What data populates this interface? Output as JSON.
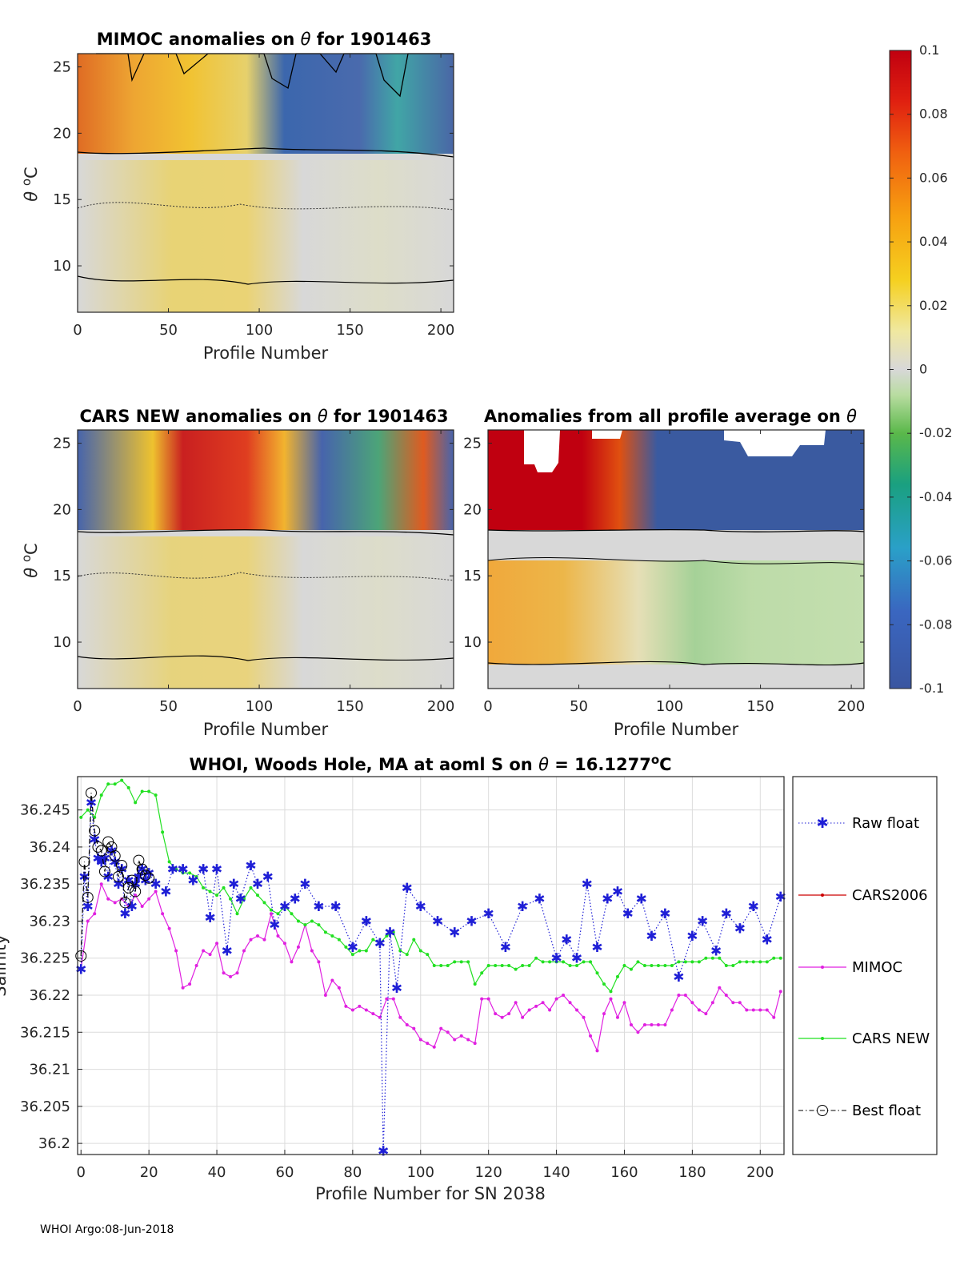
{
  "footer": "WHOI Argo:08-Jun-2018",
  "colorbar": {
    "ticks": [
      "0.1",
      "0.08",
      "0.06",
      "0.04",
      "0.02",
      "0",
      "-0.02",
      "-0.04",
      "-0.06",
      "-0.08",
      "-0.1"
    ],
    "min": -0.1,
    "max": 0.1
  },
  "colors": {
    "raw": "#1f1fd6",
    "cars2006": "#cc0000",
    "mimoc": "#e020e0",
    "carsnew": "#22e022",
    "best": "#000000"
  },
  "chart_data": [
    {
      "type": "heatmap",
      "title_a": "MIMOC anomalies on ",
      "title_sym": "θ",
      "title_b": "  for 1901463",
      "xlabel": "Profile Number",
      "ylabel_sym": "θ",
      "ylabel_unit": "C",
      "xticks": [
        "0",
        "50",
        "100",
        "150",
        "200"
      ],
      "yticks": [
        "10",
        "15",
        "20",
        "25"
      ],
      "xlim": [
        0,
        207
      ],
      "ylim": [
        6.5,
        26
      ]
    },
    {
      "type": "heatmap",
      "title_a": "CARS NEW anomalies on ",
      "title_sym": "θ",
      "title_b": " for 1901463",
      "xlabel": "Profile Number",
      "ylabel_sym": "θ",
      "ylabel_unit": "C",
      "xticks": [
        "0",
        "50",
        "100",
        "150",
        "200"
      ],
      "yticks": [
        "10",
        "15",
        "20",
        "25"
      ],
      "xlim": [
        0,
        207
      ],
      "ylim": [
        6.5,
        26
      ]
    },
    {
      "type": "heatmap",
      "title_a": "Anomalies from all profile average on ",
      "title_sym": "θ",
      "title_b": "",
      "xlabel": "Profile Number",
      "xticks": [
        "0",
        "50",
        "100",
        "150",
        "200"
      ],
      "yticks": [
        "10",
        "15",
        "20",
        "25"
      ],
      "xlim": [
        0,
        207
      ],
      "ylim": [
        6.5,
        26
      ]
    },
    {
      "type": "line",
      "title_a": "WHOI, Woods Hole, MA at aoml S on ",
      "title_sym": "θ",
      "title_b": " = 16.1277",
      "title_sup": "o",
      "title_c": "C",
      "xlabel": "Profile Number for SN 2038",
      "ylabel": "Salinity",
      "xlim": [
        -1,
        207
      ],
      "ylim": [
        36.1985,
        36.2495
      ],
      "xticks": [
        "0",
        "20",
        "40",
        "60",
        "80",
        "100",
        "120",
        "140",
        "160",
        "180",
        "200"
      ],
      "yticks": [
        "36.2",
        "36.205",
        "36.21",
        "36.215",
        "36.22",
        "36.225",
        "36.23",
        "36.235",
        "36.24",
        "36.245"
      ],
      "legend": [
        "Raw float",
        "CARS2006",
        "MIMOC",
        "CARS NEW",
        "Best float"
      ],
      "series": [
        {
          "name": "Raw float",
          "x": [
            0,
            1,
            2,
            3,
            4,
            5,
            6,
            7,
            8,
            9,
            10,
            11,
            12,
            13,
            14,
            15,
            16,
            17,
            18,
            19,
            20,
            22,
            25,
            27,
            30,
            33,
            36,
            38,
            40,
            43,
            45,
            47,
            50,
            52,
            55,
            57,
            60,
            63,
            66,
            70,
            75,
            80,
            84,
            88,
            89,
            91,
            93,
            96,
            100,
            105,
            110,
            115,
            120,
            125,
            130,
            135,
            140,
            143,
            146,
            149,
            152,
            155,
            158,
            161,
            165,
            168,
            172,
            176,
            180,
            183,
            187,
            190,
            194,
            198,
            202,
            206
          ],
          "values": [
            36.2235,
            36.236,
            36.232,
            36.246,
            36.241,
            36.2385,
            36.238,
            36.2385,
            36.236,
            36.2395,
            36.238,
            36.235,
            36.237,
            36.231,
            36.2355,
            36.232,
            36.235,
            36.236,
            36.237,
            36.2355,
            36.2365,
            36.235,
            36.234,
            36.237,
            36.237,
            36.2355,
            36.237,
            36.2305,
            36.237,
            36.226,
            36.235,
            36.233,
            36.2375,
            36.235,
            36.236,
            36.2295,
            36.232,
            36.233,
            36.235,
            36.232,
            36.232,
            36.2265,
            36.23,
            36.227,
            36.199,
            36.2285,
            36.221,
            36.2345,
            36.232,
            36.23,
            36.2285,
            36.23,
            36.231,
            36.2265,
            36.232,
            36.233,
            36.225,
            36.2275,
            36.225,
            36.235,
            36.2265,
            36.233,
            36.234,
            36.231,
            36.233,
            36.228,
            36.231,
            36.2225,
            36.228,
            36.23,
            36.226,
            36.231,
            36.229,
            36.232,
            36.2275,
            36.2333
          ]
        },
        {
          "name": "MIMOC",
          "x": [
            0,
            2,
            4,
            6,
            8,
            10,
            12,
            14,
            16,
            18,
            20,
            22,
            24,
            26,
            28,
            30,
            32,
            34,
            36,
            38,
            40,
            42,
            44,
            46,
            48,
            50,
            52,
            54,
            56,
            58,
            60,
            62,
            64,
            66,
            68,
            70,
            72,
            74,
            76,
            78,
            80,
            82,
            84,
            86,
            88,
            90,
            92,
            94,
            96,
            98,
            100,
            102,
            104,
            106,
            108,
            110,
            112,
            114,
            116,
            118,
            120,
            122,
            124,
            126,
            128,
            130,
            132,
            134,
            136,
            138,
            140,
            142,
            144,
            146,
            148,
            150,
            152,
            154,
            156,
            158,
            160,
            162,
            164,
            166,
            168,
            170,
            172,
            174,
            176,
            178,
            180,
            182,
            184,
            186,
            188,
            190,
            192,
            194,
            196,
            198,
            200,
            202,
            204,
            206
          ],
          "values": [
            36.2235,
            36.23,
            36.231,
            36.235,
            36.233,
            36.2325,
            36.233,
            36.232,
            36.2335,
            36.232,
            36.233,
            36.234,
            36.231,
            36.229,
            36.226,
            36.221,
            36.2215,
            36.224,
            36.226,
            36.2255,
            36.227,
            36.223,
            36.2225,
            36.223,
            36.226,
            36.2275,
            36.228,
            36.2275,
            36.231,
            36.228,
            36.227,
            36.2245,
            36.2265,
            36.2295,
            36.226,
            36.2245,
            36.22,
            36.222,
            36.221,
            36.2185,
            36.218,
            36.2185,
            36.218,
            36.2175,
            36.217,
            36.2195,
            36.2195,
            36.217,
            36.216,
            36.2155,
            36.214,
            36.2135,
            36.213,
            36.2155,
            36.215,
            36.214,
            36.2145,
            36.214,
            36.2135,
            36.2195,
            36.2195,
            36.2175,
            36.217,
            36.2175,
            36.219,
            36.217,
            36.218,
            36.2185,
            36.219,
            36.218,
            36.2195,
            36.22,
            36.219,
            36.218,
            36.217,
            36.2145,
            36.2125,
            36.2175,
            36.2195,
            36.217,
            36.219,
            36.216,
            36.215,
            36.216,
            36.216,
            36.216,
            36.216,
            36.218,
            36.22,
            36.22,
            36.219,
            36.218,
            36.2175,
            36.219,
            36.221,
            36.22,
            36.219,
            36.219,
            36.218,
            36.218,
            36.218,
            36.218,
            36.217,
            36.2205
          ]
        },
        {
          "name": "CARS NEW",
          "x": [
            0,
            2,
            4,
            6,
            8,
            10,
            12,
            14,
            16,
            18,
            20,
            22,
            24,
            26,
            28,
            30,
            32,
            34,
            36,
            38,
            40,
            42,
            44,
            46,
            48,
            50,
            52,
            54,
            56,
            58,
            60,
            62,
            64,
            66,
            68,
            70,
            72,
            74,
            76,
            78,
            80,
            82,
            84,
            86,
            88,
            90,
            92,
            94,
            96,
            98,
            100,
            102,
            104,
            106,
            108,
            110,
            112,
            114,
            116,
            118,
            120,
            122,
            124,
            126,
            128,
            130,
            132,
            134,
            136,
            138,
            140,
            142,
            144,
            146,
            148,
            150,
            152,
            154,
            156,
            158,
            160,
            162,
            164,
            166,
            168,
            170,
            172,
            174,
            176,
            178,
            180,
            182,
            184,
            186,
            188,
            190,
            192,
            194,
            196,
            198,
            200,
            202,
            204,
            206
          ],
          "values": [
            36.244,
            36.245,
            36.244,
            36.247,
            36.2485,
            36.2485,
            36.249,
            36.248,
            36.246,
            36.2475,
            36.2475,
            36.247,
            36.242,
            36.238,
            36.237,
            36.2365,
            36.2365,
            36.236,
            36.2345,
            36.234,
            36.2335,
            36.2345,
            36.233,
            36.231,
            36.233,
            36.2345,
            36.2335,
            36.2325,
            36.2315,
            36.231,
            36.232,
            36.231,
            36.23,
            36.2295,
            36.23,
            36.2295,
            36.2285,
            36.228,
            36.2275,
            36.2265,
            36.2255,
            36.226,
            36.226,
            36.2275,
            36.227,
            36.228,
            36.2285,
            36.226,
            36.2255,
            36.2275,
            36.226,
            36.2255,
            36.224,
            36.224,
            36.224,
            36.2245,
            36.2245,
            36.2245,
            36.2215,
            36.223,
            36.224,
            36.224,
            36.224,
            36.224,
            36.2235,
            36.224,
            36.224,
            36.225,
            36.2245,
            36.2245,
            36.2245,
            36.2245,
            36.224,
            36.224,
            36.2245,
            36.2245,
            36.223,
            36.2215,
            36.2205,
            36.2225,
            36.224,
            36.2235,
            36.2245,
            36.224,
            36.224,
            36.224,
            36.224,
            36.224,
            36.2245,
            36.2245,
            36.2245,
            36.2245,
            36.225,
            36.225,
            36.225,
            36.224,
            36.224,
            36.2245,
            36.2245,
            36.2245,
            36.2245,
            36.2245,
            36.225,
            36.225
          ]
        },
        {
          "name": "Best float",
          "x": [
            0,
            1,
            2,
            3,
            4,
            5,
            6,
            7,
            8,
            9,
            10,
            11,
            12,
            13,
            14,
            15,
            16,
            17,
            18,
            19,
            20
          ],
          "values": [
            36.2253,
            36.238,
            36.2332,
            36.2473,
            36.2422,
            36.24,
            36.2395,
            36.2367,
            36.2407,
            36.24,
            36.2388,
            36.236,
            36.2375,
            36.2325,
            36.2345,
            36.2355,
            36.234,
            36.2382,
            36.237,
            36.2362,
            36.2358
          ]
        }
      ]
    }
  ]
}
